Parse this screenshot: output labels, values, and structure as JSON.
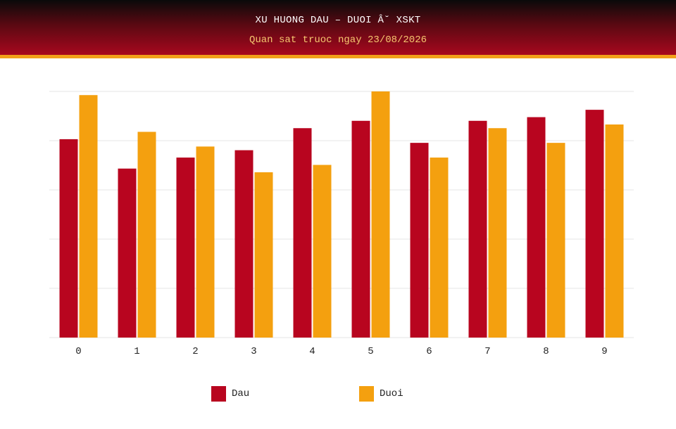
{
  "header": {
    "title": "XU HUONG DAU – DUOI Â˘ XSKT",
    "subtitle": "Quan sat truoc ngay 23/08/2026"
  },
  "colors": {
    "dau": "#b8051f",
    "duoi": "#f4a00f",
    "grid": "#e6e6e6"
  },
  "chart_data": {
    "type": "bar",
    "title": "XU HUONG DAU – DUOI Â˘ XSKT",
    "subtitle": "Quan sat truoc ngay 23/08/2026",
    "categories": [
      "0",
      "1",
      "2",
      "3",
      "4",
      "5",
      "6",
      "7",
      "8",
      "9"
    ],
    "series": [
      {
        "name": "Dau",
        "values": [
          54,
          46,
          49,
          51,
          57,
          59,
          53,
          59,
          60,
          62
        ]
      },
      {
        "name": "Duoi",
        "values": [
          66,
          56,
          52,
          45,
          47,
          67,
          49,
          57,
          53,
          58
        ]
      }
    ],
    "ylim": [
      0,
      67
    ],
    "grid": true,
    "legend": "bottom"
  }
}
